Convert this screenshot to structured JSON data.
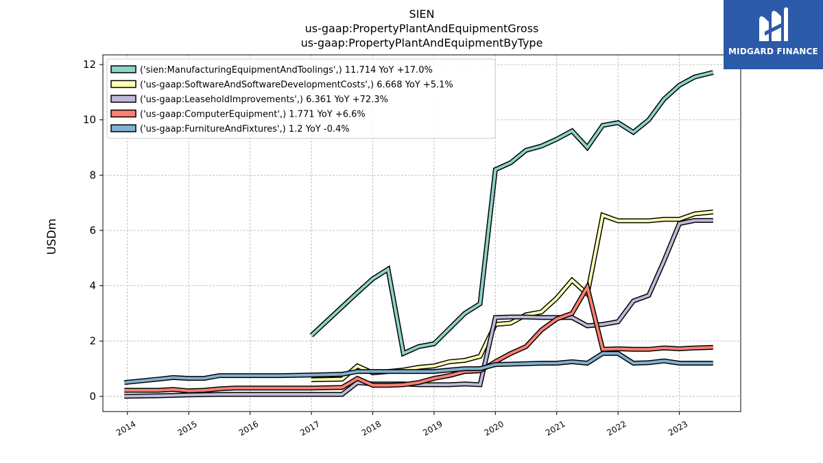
{
  "chart_data": {
    "type": "line",
    "title_lines": [
      "SIEN",
      "us-gaap:PropertyPlantAndEquipmentGross",
      "us-gaap:PropertyPlantAndEquipmentByType"
    ],
    "xlabel": "",
    "ylabel": "USDm",
    "ylim": [
      -0.55,
      12.35
    ],
    "yticks": [
      0,
      2,
      4,
      6,
      8,
      10,
      12
    ],
    "xticks": [
      "2014",
      "2015",
      "2016",
      "2017",
      "2018",
      "2019",
      "2020",
      "2021",
      "2022",
      "2023"
    ],
    "xlim": [
      2013.6,
      2024.0
    ],
    "grid": true,
    "legend_position": "top-left",
    "series": [
      {
        "name": "('sien:ManufacturingEquipmentAndToolings',) 11.714 YoY +17.0%",
        "color": "#8dd3c7",
        "points": [
          [
            2017.0,
            2.2
          ],
          [
            2017.75,
            3.75
          ],
          [
            2018.0,
            4.25
          ],
          [
            2018.25,
            4.6
          ],
          [
            2018.5,
            1.55
          ],
          [
            2018.75,
            1.8
          ],
          [
            2019.0,
            1.9
          ],
          [
            2019.25,
            2.45
          ],
          [
            2019.5,
            3.0
          ],
          [
            2019.75,
            3.35
          ],
          [
            2020.0,
            8.2
          ],
          [
            2020.25,
            8.45
          ],
          [
            2020.5,
            8.9
          ],
          [
            2020.75,
            9.05
          ],
          [
            2021.0,
            9.3
          ],
          [
            2021.25,
            9.6
          ],
          [
            2021.5,
            9.0
          ],
          [
            2021.75,
            9.8
          ],
          [
            2022.0,
            9.9
          ],
          [
            2022.25,
            9.55
          ],
          [
            2022.5,
            10.0
          ],
          [
            2022.75,
            10.75
          ],
          [
            2023.0,
            11.25
          ],
          [
            2023.25,
            11.55
          ],
          [
            2023.55,
            11.714
          ]
        ]
      },
      {
        "name": "('us-gaap:SoftwareAndSoftwareDevelopmentCosts',) 6.668 YoY +5.1%",
        "color": "#ffffb3",
        "points": [
          [
            2017.0,
            0.6
          ],
          [
            2017.5,
            0.62
          ],
          [
            2017.75,
            1.1
          ],
          [
            2018.0,
            0.85
          ],
          [
            2018.25,
            0.9
          ],
          [
            2018.5,
            0.95
          ],
          [
            2018.75,
            1.05
          ],
          [
            2019.0,
            1.1
          ],
          [
            2019.25,
            1.25
          ],
          [
            2019.5,
            1.3
          ],
          [
            2019.75,
            1.45
          ],
          [
            2020.0,
            2.6
          ],
          [
            2020.25,
            2.65
          ],
          [
            2020.5,
            2.95
          ],
          [
            2020.75,
            3.05
          ],
          [
            2021.0,
            3.55
          ],
          [
            2021.25,
            4.2
          ],
          [
            2021.5,
            3.7
          ],
          [
            2021.75,
            6.55
          ],
          [
            2022.0,
            6.35
          ],
          [
            2022.25,
            6.35
          ],
          [
            2022.5,
            6.35
          ],
          [
            2022.75,
            6.4
          ],
          [
            2023.0,
            6.4
          ],
          [
            2023.25,
            6.6
          ],
          [
            2023.55,
            6.668
          ]
        ]
      },
      {
        "name": "('us-gaap:LeaseholdImprovements',) 6.361 YoY +72.3%",
        "color": "#bebada",
        "points": [
          [
            2013.95,
            0.0
          ],
          [
            2014.5,
            0.02
          ],
          [
            2015.0,
            0.05
          ],
          [
            2015.5,
            0.07
          ],
          [
            2016.0,
            0.07
          ],
          [
            2016.5,
            0.07
          ],
          [
            2017.0,
            0.07
          ],
          [
            2017.5,
            0.07
          ],
          [
            2017.75,
            0.5
          ],
          [
            2018.0,
            0.45
          ],
          [
            2018.25,
            0.45
          ],
          [
            2018.5,
            0.45
          ],
          [
            2018.75,
            0.42
          ],
          [
            2019.0,
            0.42
          ],
          [
            2019.25,
            0.42
          ],
          [
            2019.5,
            0.45
          ],
          [
            2019.75,
            0.42
          ],
          [
            2020.0,
            2.85
          ],
          [
            2020.25,
            2.87
          ],
          [
            2020.5,
            2.87
          ],
          [
            2020.75,
            2.85
          ],
          [
            2021.0,
            2.85
          ],
          [
            2021.25,
            2.85
          ],
          [
            2021.5,
            2.55
          ],
          [
            2021.75,
            2.6
          ],
          [
            2022.0,
            2.7
          ],
          [
            2022.25,
            3.45
          ],
          [
            2022.5,
            3.65
          ],
          [
            2022.75,
            4.9
          ],
          [
            2023.0,
            6.25
          ],
          [
            2023.25,
            6.361
          ],
          [
            2023.55,
            6.361
          ]
        ]
      },
      {
        "name": "('us-gaap:ComputerEquipment',) 1.771 YoY +6.6%",
        "color": "#fb8072",
        "points": [
          [
            2013.95,
            0.22
          ],
          [
            2014.5,
            0.22
          ],
          [
            2014.75,
            0.25
          ],
          [
            2015.0,
            0.2
          ],
          [
            2015.25,
            0.22
          ],
          [
            2015.5,
            0.27
          ],
          [
            2015.75,
            0.3
          ],
          [
            2016.0,
            0.3
          ],
          [
            2016.5,
            0.3
          ],
          [
            2017.0,
            0.3
          ],
          [
            2017.5,
            0.32
          ],
          [
            2017.75,
            0.65
          ],
          [
            2018.0,
            0.4
          ],
          [
            2018.25,
            0.4
          ],
          [
            2018.5,
            0.42
          ],
          [
            2018.75,
            0.5
          ],
          [
            2019.0,
            0.65
          ],
          [
            2019.25,
            0.75
          ],
          [
            2019.5,
            0.9
          ],
          [
            2019.75,
            0.92
          ],
          [
            2020.0,
            1.25
          ],
          [
            2020.25,
            1.55
          ],
          [
            2020.5,
            1.8
          ],
          [
            2020.75,
            2.4
          ],
          [
            2021.0,
            2.8
          ],
          [
            2021.25,
            3.0
          ],
          [
            2021.5,
            3.95
          ],
          [
            2021.75,
            1.7
          ],
          [
            2022.0,
            1.72
          ],
          [
            2022.25,
            1.7
          ],
          [
            2022.5,
            1.7
          ],
          [
            2022.75,
            1.75
          ],
          [
            2023.0,
            1.72
          ],
          [
            2023.25,
            1.75
          ],
          [
            2023.55,
            1.771
          ]
        ]
      },
      {
        "name": "('us-gaap:FurnitureAndFixtures',) 1.2 YoY -0.4%",
        "color": "#80b1d3",
        "points": [
          [
            2013.95,
            0.5
          ],
          [
            2014.5,
            0.62
          ],
          [
            2014.75,
            0.68
          ],
          [
            2015.0,
            0.65
          ],
          [
            2015.25,
            0.65
          ],
          [
            2015.5,
            0.75
          ],
          [
            2015.75,
            0.75
          ],
          [
            2016.0,
            0.75
          ],
          [
            2016.5,
            0.75
          ],
          [
            2017.0,
            0.77
          ],
          [
            2017.5,
            0.8
          ],
          [
            2017.75,
            0.9
          ],
          [
            2018.0,
            0.9
          ],
          [
            2018.5,
            0.9
          ],
          [
            2019.0,
            0.9
          ],
          [
            2019.25,
            0.95
          ],
          [
            2019.5,
            1.0
          ],
          [
            2019.75,
            1.0
          ],
          [
            2020.0,
            1.15
          ],
          [
            2020.5,
            1.18
          ],
          [
            2020.75,
            1.2
          ],
          [
            2021.0,
            1.2
          ],
          [
            2021.25,
            1.25
          ],
          [
            2021.5,
            1.2
          ],
          [
            2021.75,
            1.55
          ],
          [
            2022.0,
            1.55
          ],
          [
            2022.25,
            1.2
          ],
          [
            2022.5,
            1.22
          ],
          [
            2022.75,
            1.28
          ],
          [
            2023.0,
            1.2
          ],
          [
            2023.55,
            1.2
          ]
        ]
      }
    ]
  },
  "logo": {
    "text": "MIDGARD FINANCE",
    "bg_color": "#2b5aa8"
  }
}
